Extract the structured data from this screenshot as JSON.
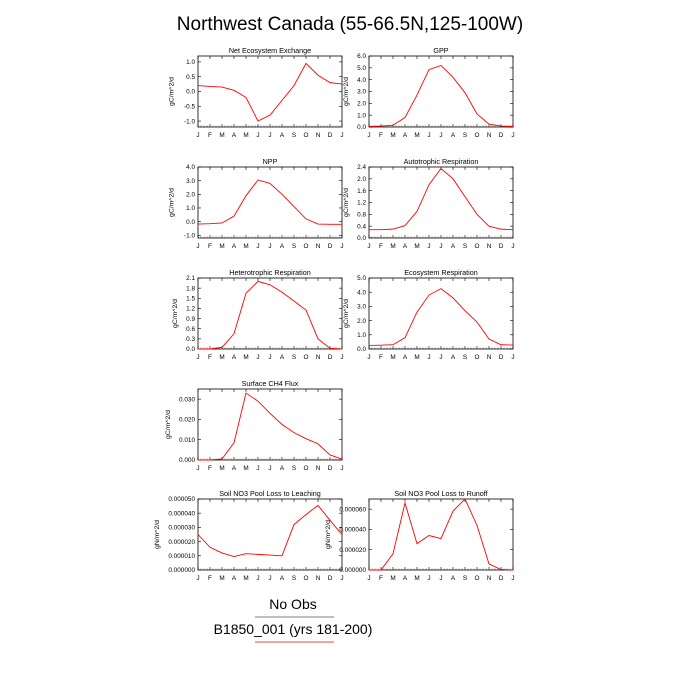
{
  "title": "Northwest Canada (55-66.5N,125-100W)",
  "month_labels": [
    "J",
    "F",
    "M",
    "A",
    "M",
    "J",
    "J",
    "A",
    "S",
    "O",
    "N",
    "D",
    "J"
  ],
  "legend": {
    "entries": [
      {
        "label": "No Obs",
        "color": "#000000"
      },
      {
        "label": "B1850_001 (yrs 181-200)",
        "color": "#ff0000"
      }
    ]
  },
  "colors": {
    "series": "#ff0000",
    "axis": "#000000"
  },
  "chart_data": [
    {
      "type": "line",
      "title": "Net Ecosystem Exchange",
      "ylabel": "gC/m^2/d",
      "ylim": [
        -1.2,
        1.2
      ],
      "yticks": [
        -1.0,
        -0.5,
        0.0,
        0.5,
        1.0
      ],
      "ytick_labels": [
        "-1.0",
        "-0.5",
        "0.0",
        "0.5",
        "1.0"
      ],
      "values": [
        0.2,
        0.17,
        0.15,
        0.04,
        -0.2,
        -1.0,
        -0.8,
        -0.3,
        0.2,
        0.95,
        0.55,
        0.3,
        0.25
      ]
    },
    {
      "type": "line",
      "title": "GPP",
      "ylabel": "gC/m^2/d",
      "ylim": [
        0,
        6
      ],
      "yticks": [
        0,
        1,
        2,
        3,
        4,
        5,
        6
      ],
      "ytick_labels": [
        "0.0",
        "1.0",
        "2.0",
        "3.0",
        "4.0",
        "5.0",
        "6.0"
      ],
      "values": [
        0.05,
        0.08,
        0.15,
        0.8,
        2.7,
        4.85,
        5.2,
        4.2,
        2.9,
        1.1,
        0.25,
        0.08,
        0.05
      ]
    },
    {
      "type": "line",
      "title": "NPP",
      "ylabel": "gC/m^2/d",
      "ylim": [
        -1.2,
        4
      ],
      "yticks": [
        -1,
        0,
        1,
        2,
        3,
        4
      ],
      "ytick_labels": [
        "-1.0",
        "0.0",
        "1.0",
        "2.0",
        "3.0",
        "4.0"
      ],
      "values": [
        -0.18,
        -0.15,
        -0.1,
        0.4,
        1.9,
        3.05,
        2.8,
        2.0,
        1.1,
        0.2,
        -0.18,
        -0.2,
        -0.2
      ]
    },
    {
      "type": "line",
      "title": "Autotrophic Respiration",
      "ylabel": "gC/m^2/d",
      "ylim": [
        0,
        2.4
      ],
      "yticks": [
        0,
        0.4,
        0.8,
        1.2,
        1.6,
        2.0,
        2.4
      ],
      "ytick_labels": [
        "0.0",
        "0.4",
        "0.8",
        "1.2",
        "1.6",
        "2.0",
        "2.4"
      ],
      "values": [
        0.28,
        0.28,
        0.3,
        0.42,
        0.9,
        1.8,
        2.35,
        2.0,
        1.4,
        0.8,
        0.4,
        0.3,
        0.28
      ]
    },
    {
      "type": "line",
      "title": "Heterotrophic Respiration",
      "ylabel": "gC/m^2/d",
      "ylim": [
        0,
        2.1
      ],
      "yticks": [
        0,
        0.3,
        0.6,
        0.9,
        1.2,
        1.5,
        1.8,
        2.1
      ],
      "ytick_labels": [
        "0.0",
        "0.3",
        "0.6",
        "0.9",
        "1.2",
        "1.5",
        "1.8",
        "2.1"
      ],
      "values": [
        0.0,
        0.0,
        0.05,
        0.45,
        1.65,
        2.0,
        1.9,
        1.68,
        1.42,
        1.15,
        0.3,
        0.02,
        0.0
      ]
    },
    {
      "type": "line",
      "title": "Ecosystem Respiration",
      "ylabel": "gC/m^2/d",
      "ylim": [
        0,
        5
      ],
      "yticks": [
        0,
        1,
        2,
        3,
        4,
        5
      ],
      "ytick_labels": [
        "0.0",
        "1.0",
        "2.0",
        "3.0",
        "4.0",
        "5.0"
      ],
      "values": [
        0.25,
        0.27,
        0.3,
        0.8,
        2.6,
        3.8,
        4.25,
        3.6,
        2.7,
        1.9,
        0.7,
        0.3,
        0.28
      ]
    },
    {
      "type": "line",
      "title": "Surface CH4 Flux",
      "ylabel": "gC/m^2/d",
      "ylim": [
        0,
        0.035
      ],
      "yticks": [
        0,
        0.01,
        0.02,
        0.03
      ],
      "ytick_labels": [
        "0.000",
        "0.010",
        "0.020",
        "0.030"
      ],
      "values": [
        0.0,
        0.0,
        0.0005,
        0.0085,
        0.033,
        0.029,
        0.023,
        0.0175,
        0.0135,
        0.0105,
        0.008,
        0.0025,
        0.0005
      ]
    },
    null,
    {
      "type": "line",
      "title": "Soil NO3 Pool Loss to Leaching",
      "ylabel": "gN/m^2/d",
      "ylim": [
        0,
        5e-05
      ],
      "yticks": [
        0,
        1e-05,
        2e-05,
        3e-05,
        4e-05,
        5e-05
      ],
      "ytick_labels": [
        "0.000000",
        "0.000010",
        "0.000020",
        "0.000030",
        "0.000040",
        "0.000050"
      ],
      "values": [
        2.5e-05,
        1.6e-05,
        1.2e-05,
        9.5e-06,
        1.15e-05,
        1.1e-05,
        1.05e-05,
        1e-05,
        3.2e-05,
        3.9e-05,
        4.55e-05,
        3.5e-05,
        2.5e-05
      ]
    },
    {
      "type": "line",
      "title": "Soil NO3 Pool Loss to Runoff",
      "ylabel": "gN/m^2/d",
      "ylim": [
        0,
        7e-05
      ],
      "yticks": [
        0,
        2e-05,
        4e-05,
        6e-05
      ],
      "ytick_labels": [
        "0.000000",
        "0.000020",
        "0.000040",
        "0.000060"
      ],
      "values": [
        0.0,
        0.0,
        1.6e-05,
        6.6e-05,
        2.6e-05,
        3.4e-05,
        3.1e-05,
        5.8e-05,
        7e-05,
        4.4e-05,
        6e-06,
        5e-07,
        0.0
      ]
    }
  ]
}
